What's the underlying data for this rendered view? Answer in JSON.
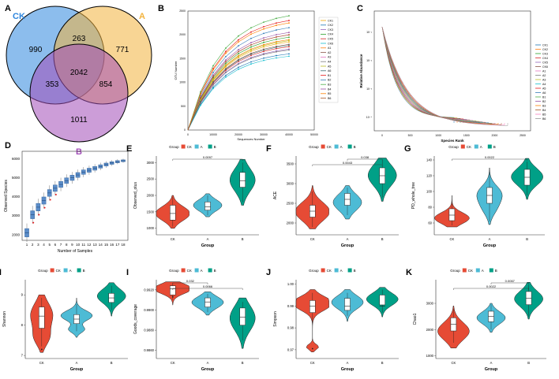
{
  "chart_data": [
    {
      "type": "venn",
      "panel": "A",
      "sets": [
        {
          "name": "CK",
          "color": "#2e86de",
          "only": 990
        },
        {
          "name": "A",
          "color": "#f3b33d",
          "only": 771
        },
        {
          "name": "B",
          "color": "#a24cb8",
          "only": 1011
        }
      ],
      "intersections": {
        "CK_A": 263,
        "CK_B": 353,
        "A_B": 854,
        "CK_A_B": 2042
      }
    },
    {
      "type": "line",
      "panel": "B",
      "title": "",
      "xlabel": "Sequences Number",
      "ylabel": "OTU Number",
      "xlim": [
        0,
        50000
      ],
      "ylim": [
        0,
        2500
      ],
      "xticks": [
        "0",
        "10000",
        "20000",
        "30000",
        "40000",
        "50000"
      ],
      "yticks": [
        "0",
        "500",
        "1000",
        "1500",
        "2000",
        "2500"
      ],
      "x": [
        0,
        5000,
        10000,
        15000,
        20000,
        25000,
        30000,
        35000,
        40000
      ],
      "series": [
        {
          "name": "CK1",
          "final": 1850
        },
        {
          "name": "CK2",
          "final": 1600
        },
        {
          "name": "CK3",
          "final": 1700
        },
        {
          "name": "CK4",
          "final": 1950
        },
        {
          "name": "CK5",
          "final": 1750
        },
        {
          "name": "CK6",
          "final": 1550
        },
        {
          "name": "A1",
          "final": 1900
        },
        {
          "name": "A2",
          "final": 1800
        },
        {
          "name": "A3",
          "final": 2000
        },
        {
          "name": "A4",
          "final": 1680
        },
        {
          "name": "A5",
          "final": 1880
        },
        {
          "name": "A6",
          "final": 1780
        },
        {
          "name": "B1",
          "final": 2300
        },
        {
          "name": "B2",
          "final": 2150
        },
        {
          "name": "B3",
          "final": 2400
        },
        {
          "name": "B4",
          "final": 2050
        },
        {
          "name": "B5",
          "final": 2250
        },
        {
          "name": "B6",
          "final": 2000
        }
      ]
    },
    {
      "type": "line",
      "panel": "C",
      "xlabel": "Species Rank",
      "ylabel": "Relative Abundance",
      "xticks": [
        "0",
        "500",
        "1000",
        "1500",
        "2000",
        "2500"
      ],
      "yticks": [
        "10⁻¹",
        "10⁻²",
        "10⁻³",
        "10⁻⁴"
      ],
      "legend": [
        "CK1",
        "CK2",
        "CK3",
        "CK4",
        "CK5",
        "CK6",
        "A1",
        "A2",
        "A3",
        "A4",
        "A5",
        "A6",
        "B1",
        "B2",
        "B3",
        "B4",
        "B5",
        "B6"
      ]
    },
    {
      "type": "box",
      "panel": "D",
      "xlabel": "Number of Samples",
      "ylabel": "Observed Species",
      "xticks": [
        "1",
        "2",
        "3",
        "4",
        "5",
        "6",
        "7",
        "8",
        "9",
        "10",
        "11",
        "12",
        "13",
        "14",
        "15",
        "16",
        "17",
        "18"
      ],
      "yticks": [
        "2000",
        "3000",
        "4000",
        "5000",
        "6000"
      ],
      "medians": [
        2100,
        3050,
        3450,
        3800,
        4200,
        4450,
        4650,
        4850,
        5000,
        5150,
        5300,
        5400,
        5500,
        5600,
        5700,
        5780,
        5850,
        5900
      ]
    },
    {
      "type": "violin",
      "panel": "E",
      "ylabel": "Observed_otus",
      "xlabel": "Group",
      "categories": [
        "CK",
        "A",
        "B"
      ],
      "medians": [
        1450,
        1650,
        2450
      ],
      "yticks": [
        "1000",
        "1500",
        "2000",
        "2500",
        "3000"
      ],
      "legend_title": "Group",
      "significance": [
        {
          "pair": "CK-B",
          "p": "0.0097"
        }
      ]
    },
    {
      "type": "violin",
      "panel": "F",
      "ylabel": "ACE",
      "xlabel": "Group",
      "categories": [
        "CK",
        "A",
        "B"
      ],
      "medians": [
        2300,
        2600,
        3200
      ],
      "yticks": [
        "2000",
        "2500",
        "3000",
        "3500"
      ],
      "legend_title": "Group",
      "significance": [
        {
          "pair": "A-B",
          "p": "0.038"
        },
        {
          "pair": "CK-B",
          "p": "0.0043"
        }
      ]
    },
    {
      "type": "violin",
      "panel": "G",
      "ylabel": "PD_whole_tree",
      "xlabel": "Group",
      "categories": [
        "CK",
        "A",
        "B"
      ],
      "medians": [
        70,
        95,
        118
      ],
      "yticks": [
        "60",
        "80",
        "100",
        "120",
        "140"
      ],
      "legend_title": "Group",
      "significance": [
        {
          "pair": "CK-B",
          "p": "0.0022"
        }
      ]
    },
    {
      "type": "violin",
      "panel": "H",
      "ylabel": "Shannon",
      "xlabel": "Group",
      "categories": [
        "CK",
        "A",
        "B"
      ],
      "medians": [
        8.3,
        8.2,
        8.9
      ],
      "yticks": [
        "7",
        "8",
        "9"
      ],
      "legend_title": "Group",
      "significance": []
    },
    {
      "type": "violin",
      "panel": "I",
      "ylabel": "Goods_coverage",
      "xlabel": "Group",
      "categories": [
        "CK",
        "A",
        "B"
      ],
      "medians": [
        0.9921,
        0.9908,
        0.9893
      ],
      "yticks": [
        "0.9860",
        "0.9880",
        "0.9900",
        "0.9920"
      ],
      "legend_title": "Group",
      "significance": [
        {
          "pair": "CK-A",
          "p": "0.032"
        },
        {
          "pair": "CK-B",
          "p": "0.0066"
        }
      ]
    },
    {
      "type": "violin",
      "panel": "J",
      "ylabel": "Simpson",
      "xlabel": "Group",
      "categories": [
        "CK",
        "A",
        "B"
      ],
      "medians": [
        0.99,
        0.99,
        0.99
      ],
      "yticks": [
        "0.97",
        "0.98",
        "0.99",
        "1.00"
      ],
      "legend_title": "Group",
      "significance": []
    },
    {
      "type": "violin",
      "panel": "K",
      "ylabel": "Chao1",
      "xlabel": "Group",
      "categories": [
        "CK",
        "A",
        "B"
      ],
      "medians": [
        2200,
        2500,
        3200
      ],
      "yticks": [
        "1000",
        "2000",
        "3000"
      ],
      "legend_title": "Group",
      "significance": [
        {
          "pair": "A-B",
          "p": "0.0067"
        },
        {
          "pair": "CK-B",
          "p": "0.0022"
        }
      ]
    }
  ],
  "colors": {
    "CK": "#e64b35",
    "A": "#4dbbd5",
    "B": "#00a087"
  }
}
